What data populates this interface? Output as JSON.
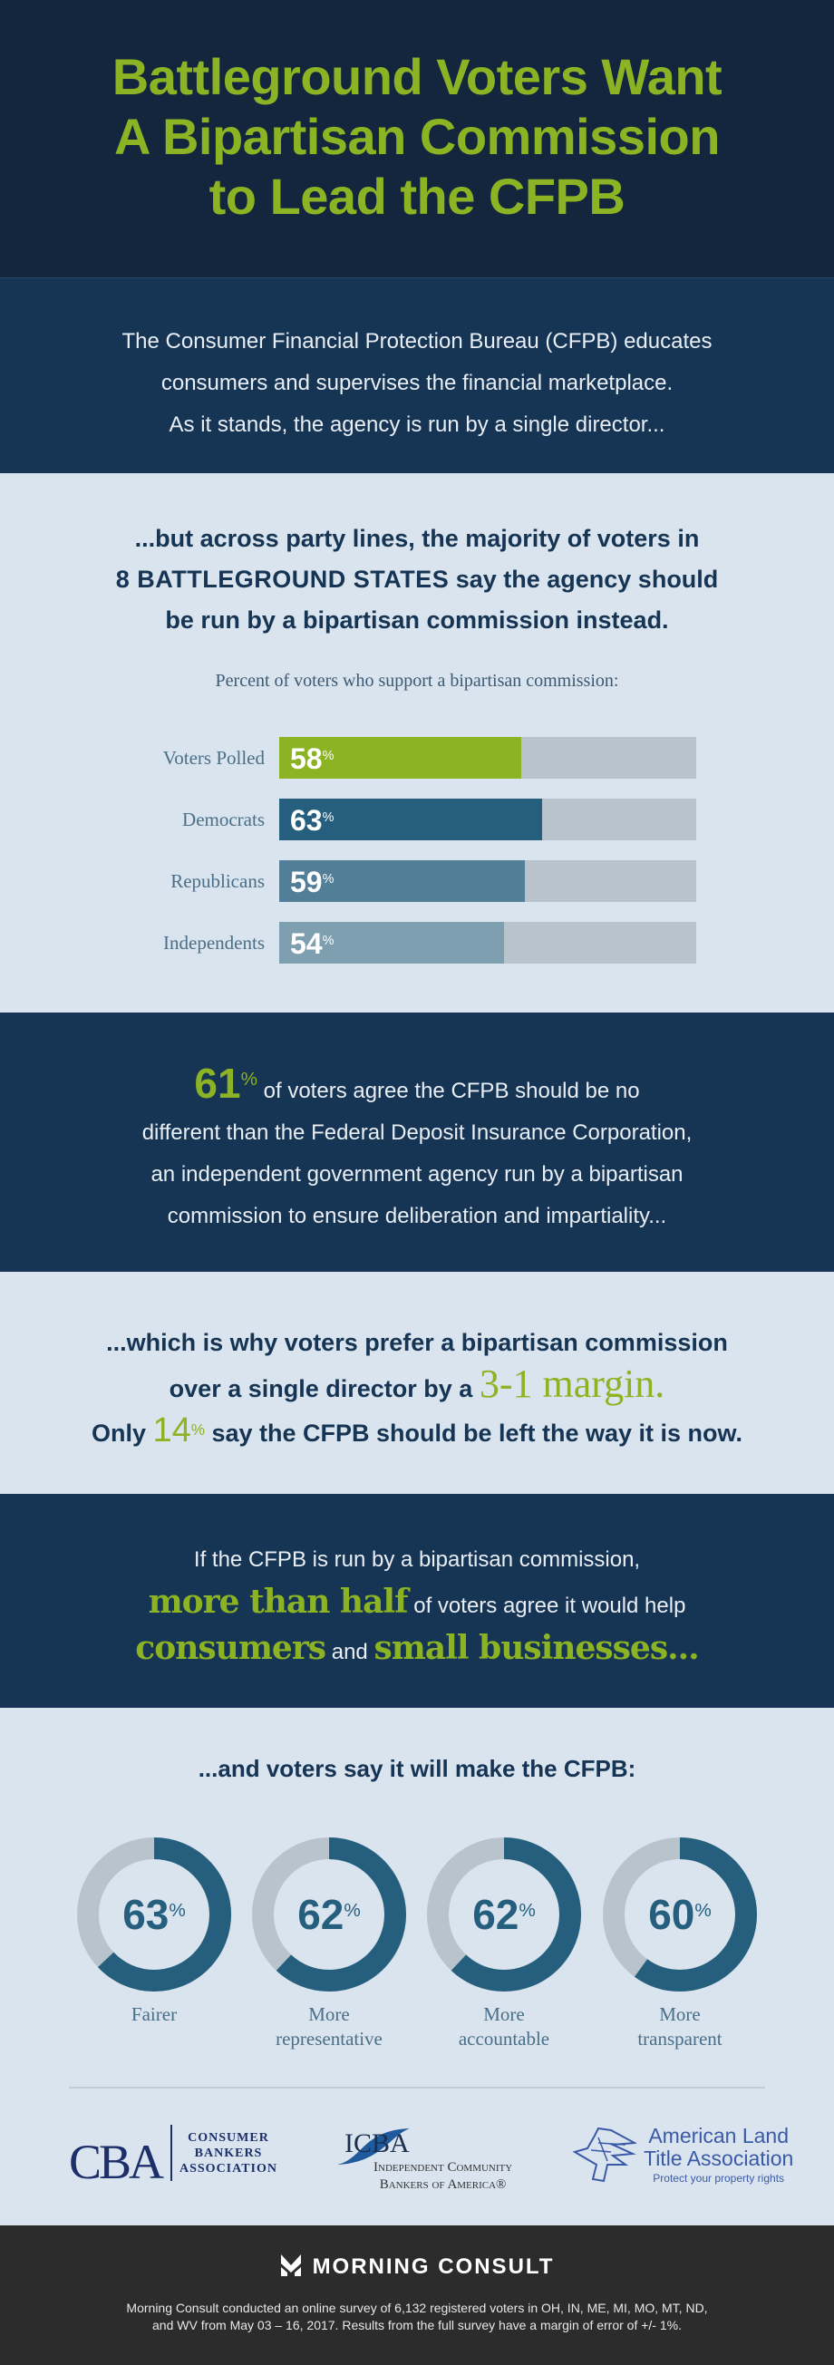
{
  "header": {
    "title_lines": [
      "Battleground Voters Want",
      "A Bipartisan Commission",
      "to Lead the CFPB"
    ]
  },
  "intro": {
    "lines": [
      "The Consumer Financial Protection Bureau (CFPB) educates",
      "consumers and supervises the financial marketplace.",
      "As it stands, the agency is run by a single director..."
    ]
  },
  "lead": {
    "line1": "...but across party lines, the majority of voters in",
    "line2_bold": "8 BATTLEGROUND STATES",
    "line2_rest": " say the agency should",
    "line3": "be run by a bipartisan commission instead.",
    "subtitle": "Percent of voters who support a bipartisan commission:"
  },
  "chart_data": [
    {
      "type": "bar",
      "orientation": "horizontal",
      "title": "Percent of voters who support a bipartisan commission:",
      "categories": [
        "Voters Polled",
        "Democrats",
        "Republicans",
        "Independents"
      ],
      "values": [
        58,
        63,
        59,
        54
      ],
      "value_labels": [
        "58",
        "63",
        "59",
        "54"
      ],
      "unit": "%",
      "xlim": [
        0,
        100
      ],
      "colors": [
        "#8cb324",
        "#265f7e",
        "#527f97",
        "#7e9fb0"
      ],
      "track_color": "#b9c3cc"
    },
    {
      "type": "pie",
      "style": "donut",
      "title": "...and voters say it will make the CFPB:",
      "categories": [
        "Fairer",
        "More representative",
        "More accountable",
        "More transparent"
      ],
      "label_lines": [
        [
          "Fairer"
        ],
        [
          "More",
          "representative"
        ],
        [
          "More",
          "accountable"
        ],
        [
          "More",
          "transparent"
        ]
      ],
      "values": [
        63,
        62,
        62,
        60
      ],
      "value_labels": [
        "63",
        "62",
        "62",
        "60"
      ],
      "unit": "%",
      "colors": {
        "fill": "#265f7e",
        "remainder": "#b9c3cc"
      }
    }
  ],
  "fdic": {
    "pct": "61",
    "pct_sign": "%",
    "line1": " of voters agree the CFPB should be no",
    "line2": "different than the Federal Deposit Insurance Corporation,",
    "line3": "an independent government agency run by a bipartisan",
    "line4": "commission to ensure deliberation and impartiality..."
  },
  "margin": {
    "line1": "...which is why voters prefer a bipartisan commission",
    "line2": "over a single director by a ",
    "margin_text": "3-1 margin.",
    "line3_pre": "Only ",
    "pct": "14",
    "pct_sign": "%",
    "line3_post": " say the CFPB should be left the way it is now."
  },
  "help": {
    "line1": "If the CFPB is run by a bipartisan commission,",
    "highlight1": "more than half",
    "line2_rest": " of voters agree it would help",
    "highlight2": "consumers",
    "and": " and ",
    "highlight3": "small businesses..."
  },
  "make": {
    "heading": "...and voters say it will make the CFPB:",
    "pct_sign": "%"
  },
  "logos": {
    "cba": {
      "mark": "CBA",
      "lines": [
        "CONSUMER",
        "BANKERS",
        "ASSOCIATION"
      ]
    },
    "icba": {
      "mark": "ICBA",
      "lines": [
        "Independent Community",
        "Bankers of America®"
      ]
    },
    "alta": {
      "lines": [
        "American Land",
        "Title Association"
      ],
      "tagline": "Protect your property rights"
    }
  },
  "footer": {
    "brand": "MORNING CONSULT",
    "note_lines": [
      "Morning Consult conducted an online survey of 6,132 registered voters in OH, IN, ME, MI, MO, MT, ND,",
      "and WV from May 03 – 16, 2017. Results from the full survey have a margin of error of +/- 1%."
    ]
  },
  "colors": {
    "accent_green": "#8cb324",
    "navy": "#163453",
    "header_navy": "#13263e",
    "light_bg": "#d9e4ee",
    "footer_bg": "#2c2c2c"
  }
}
